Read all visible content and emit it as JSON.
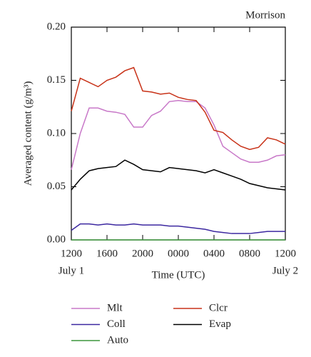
{
  "chart_data": {
    "type": "line",
    "title": "Morrison",
    "xlabel": "Time (UTC)",
    "ylabel": "Averaged content (g/m³)",
    "x": [
      0,
      1,
      2,
      3,
      4,
      5,
      6,
      7,
      8,
      9,
      10,
      11,
      12,
      13,
      14,
      15,
      16,
      17,
      18,
      19,
      20,
      21,
      22,
      23,
      24
    ],
    "xlim": [
      0,
      24
    ],
    "xticks": [
      {
        "value": 0,
        "label": "1200"
      },
      {
        "value": 4,
        "label": "1600"
      },
      {
        "value": 8,
        "label": "2000"
      },
      {
        "value": 12,
        "label": "0000"
      },
      {
        "value": 16,
        "label": "0400"
      },
      {
        "value": 20,
        "label": "0800"
      },
      {
        "value": 24,
        "label": "1200"
      }
    ],
    "date_labels": [
      "July 1",
      "July 2"
    ],
    "ylim": [
      0,
      0.2
    ],
    "yticks": [
      {
        "value": 0,
        "label": "0.00"
      },
      {
        "value": 0.05,
        "label": "0.05"
      },
      {
        "value": 0.1,
        "label": "0.10"
      },
      {
        "value": 0.15,
        "label": "0.15"
      },
      {
        "value": 0.2,
        "label": "0.20"
      }
    ],
    "series": [
      {
        "name": "Mlt",
        "color": "#c878c8",
        "values": [
          0.066,
          0.1,
          0.124,
          0.124,
          0.121,
          0.12,
          0.118,
          0.106,
          0.106,
          0.117,
          0.121,
          0.13,
          0.131,
          0.13,
          0.13,
          0.124,
          0.108,
          0.088,
          0.082,
          0.076,
          0.073,
          0.073,
          0.075,
          0.079,
          0.08
        ]
      },
      {
        "name": "Coll",
        "color": "#3c28a0",
        "values": [
          0.009,
          0.015,
          0.015,
          0.014,
          0.015,
          0.014,
          0.014,
          0.015,
          0.014,
          0.014,
          0.014,
          0.013,
          0.013,
          0.012,
          0.011,
          0.01,
          0.008,
          0.007,
          0.006,
          0.006,
          0.006,
          0.007,
          0.008,
          0.008,
          0.008
        ]
      },
      {
        "name": "Auto",
        "color": "#3c963c",
        "values": [
          0,
          0,
          0,
          0,
          0,
          0,
          0,
          0,
          0,
          0,
          0,
          0,
          0,
          0,
          0,
          0,
          0,
          0,
          0,
          0,
          0,
          0,
          0,
          0,
          0
        ]
      },
      {
        "name": "Clcr",
        "color": "#c83218",
        "values": [
          0.121,
          0.152,
          0.148,
          0.144,
          0.15,
          0.153,
          0.159,
          0.162,
          0.14,
          0.139,
          0.137,
          0.138,
          0.134,
          0.132,
          0.131,
          0.12,
          0.103,
          0.101,
          0.094,
          0.088,
          0.085,
          0.087,
          0.096,
          0.094,
          0.09
        ]
      },
      {
        "name": "Evap",
        "color": "#000000",
        "values": [
          0.047,
          0.057,
          0.065,
          0.067,
          0.068,
          0.069,
          0.075,
          0.071,
          0.066,
          0.065,
          0.064,
          0.068,
          0.067,
          0.066,
          0.065,
          0.063,
          0.066,
          0.063,
          0.06,
          0.057,
          0.053,
          0.051,
          0.049,
          0.048,
          0.047
        ]
      }
    ]
  }
}
